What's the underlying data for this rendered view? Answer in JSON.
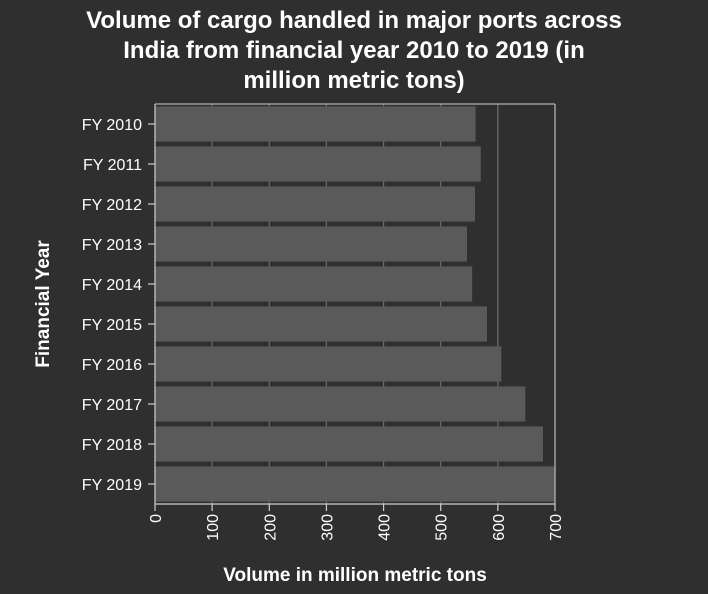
{
  "chart_data": {
    "type": "bar",
    "orientation": "horizontal",
    "title_lines": [
      "Volume of cargo handled in major ports across",
      "India from financial year 2010 to 2019 (in",
      "million metric tons)"
    ],
    "xlabel": "Volume in million metric tons",
    "ylabel": "Financial Year",
    "categories": [
      "FY 2010",
      "FY 2011",
      "FY 2012",
      "FY 2013",
      "FY 2014",
      "FY 2015",
      "FY 2016",
      "FY 2017",
      "FY 2018",
      "FY 2019"
    ],
    "values": [
      561,
      570,
      560,
      546,
      555,
      581,
      606,
      648,
      679,
      699
    ],
    "xlim": [
      0,
      700
    ],
    "xticks": [
      0,
      100,
      200,
      300,
      400,
      500,
      600,
      700
    ],
    "grid": true,
    "colors": {
      "background": "#2f2f2f",
      "bar": "#5a5a5a",
      "grid": "#6e6e6e",
      "axis": "#cfcfcf",
      "text": "#ffffff"
    }
  }
}
